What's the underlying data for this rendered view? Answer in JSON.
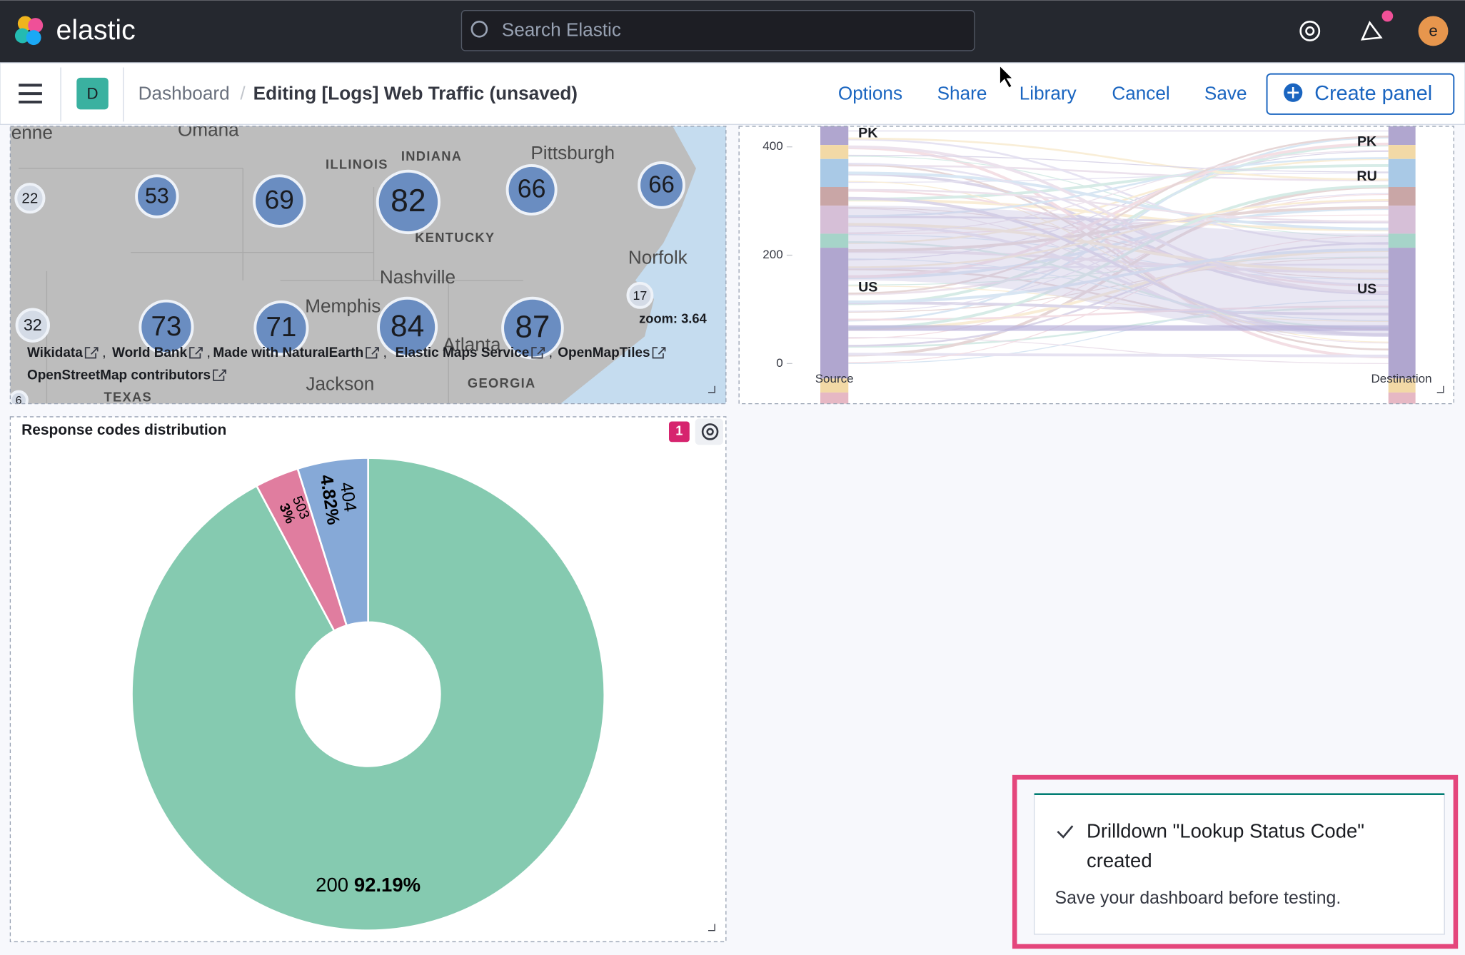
{
  "header": {
    "logo": "elastic",
    "search_placeholder": "Search Elastic",
    "avatar": "e"
  },
  "toolbar": {
    "space": "D",
    "breadcrumb": [
      "Dashboard",
      "Editing [Logs] Web Traffic (unsaved)"
    ],
    "actions": [
      "Options",
      "Share",
      "Library",
      "Cancel",
      "Save"
    ],
    "create": "Create panel"
  },
  "map": {
    "places": [
      "enne",
      "Omaha",
      "ILLINOIS",
      "INDIANA",
      "Pittsburgh",
      "KENTUCKY",
      "Norfolk",
      "Nashville",
      "Memphis",
      "Atlanta",
      "Jackson",
      "GEORGIA",
      "TEXAS"
    ],
    "clusters": [
      "22",
      "53",
      "69",
      "82",
      "66",
      "66",
      "32",
      "73",
      "71",
      "84",
      "87",
      "17",
      "6"
    ],
    "zoom": "zoom: 3.64",
    "attribution": [
      "Wikidata",
      "World Bank",
      "Made with NaturalEarth",
      "Elastic Maps Service",
      "OpenMapTiles",
      "OpenStreetMap contributors"
    ]
  },
  "sankey": {
    "type": "sankey",
    "ylim": [
      0,
      438
    ],
    "yticks": [
      0,
      200,
      400
    ],
    "x_labels": [
      "Source",
      "Destination"
    ],
    "source_nodes": [
      "PK",
      "US"
    ],
    "destination_nodes": [
      "PK",
      "RU",
      "US"
    ]
  },
  "pie_panel": {
    "title": "Response codes distribution",
    "badge": "1",
    "chart": {
      "type": "pie",
      "donut": true,
      "categories": [
        "200",
        "503",
        "404"
      ],
      "values": [
        92.19,
        3,
        4.82
      ],
      "value_labels": [
        "92.19%",
        "3%",
        "4.82%"
      ],
      "colors": [
        "#85cab0",
        "#e07d9f",
        "#86a9d7"
      ]
    }
  },
  "toast": {
    "title": "Drilldown \"Lookup Status Code\" created",
    "text": "Save your dashboard before testing."
  }
}
